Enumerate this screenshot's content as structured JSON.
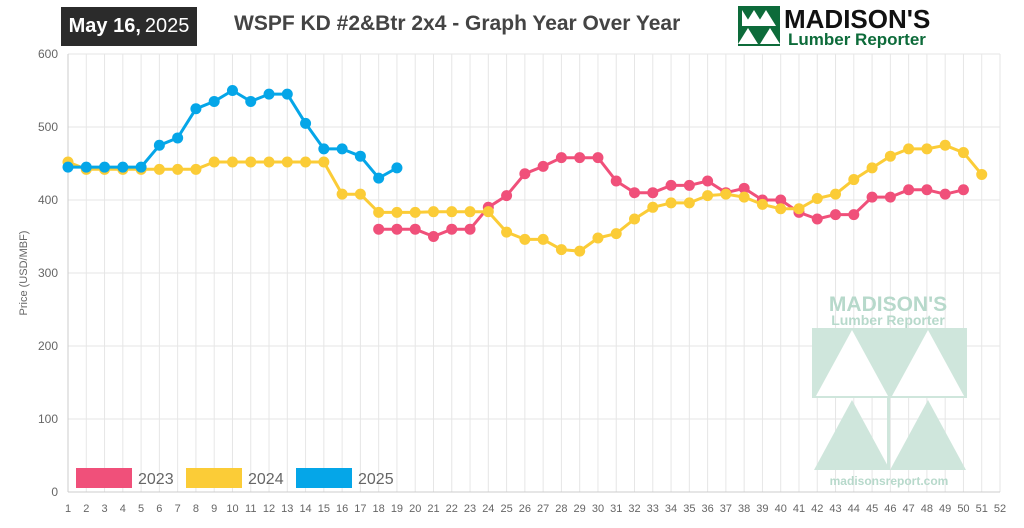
{
  "header": {
    "date_main": "May 16,",
    "date_year": "2025",
    "title": "WSPF KD #2&Btr 2x4 - Graph Year Over Year"
  },
  "logo": {
    "name": "MADISON'S",
    "subtitle": "Lumber Reporter",
    "brand_color": "#0d6b3a"
  },
  "watermark": {
    "name": "MADISON'S",
    "subtitle": "Lumber Reporter",
    "url": "madisonsreport.com",
    "color": "#b7d9cb"
  },
  "chart_data": {
    "type": "line",
    "ylabel": "Price  (USD/MBF)",
    "xlabel": "",
    "ylim": [
      0,
      600
    ],
    "yticks": [
      0,
      100,
      200,
      300,
      400,
      500,
      600
    ],
    "x": [
      1,
      2,
      3,
      4,
      5,
      6,
      7,
      8,
      9,
      10,
      11,
      12,
      13,
      14,
      15,
      16,
      17,
      18,
      19,
      20,
      21,
      22,
      23,
      24,
      25,
      26,
      27,
      28,
      29,
      30,
      31,
      32,
      33,
      34,
      35,
      36,
      37,
      38,
      39,
      40,
      41,
      42,
      43,
      44,
      45,
      46,
      47,
      48,
      49,
      50,
      51,
      52
    ],
    "grid": true,
    "legend_position": "bottom-left",
    "series": [
      {
        "name": "2023",
        "color": "#f0507a",
        "values": [
          null,
          null,
          null,
          null,
          null,
          null,
          null,
          null,
          null,
          null,
          null,
          null,
          null,
          null,
          null,
          null,
          null,
          360,
          360,
          360,
          350,
          360,
          360,
          390,
          406,
          436,
          446,
          458,
          458,
          458,
          426,
          410,
          410,
          420,
          420,
          426,
          410,
          416,
          400,
          400,
          383,
          374,
          380,
          380,
          404,
          404,
          414,
          414,
          408,
          414,
          null,
          null
        ]
      },
      {
        "name": "2024",
        "color": "#fbcc37",
        "values": [
          452,
          442,
          442,
          442,
          442,
          442,
          442,
          442,
          452,
          452,
          452,
          452,
          452,
          452,
          452,
          408,
          408,
          383,
          383,
          383,
          384,
          384,
          384,
          384,
          356,
          346,
          346,
          332,
          330,
          348,
          354,
          374,
          390,
          396,
          396,
          406,
          408,
          404,
          394,
          388,
          388,
          402,
          408,
          428,
          444,
          460,
          470,
          470,
          475,
          465,
          435,
          null
        ]
      },
      {
        "name": "2025",
        "color": "#05a6e8",
        "values": [
          445,
          445,
          445,
          445,
          445,
          475,
          485,
          525,
          535,
          550,
          535,
          545,
          545,
          505,
          470,
          470,
          460,
          430,
          444,
          null,
          null,
          null,
          null,
          null,
          null,
          null,
          null,
          null,
          null,
          null,
          null,
          null,
          null,
          null,
          null,
          null,
          null,
          null,
          null,
          null,
          null,
          null,
          null,
          null,
          null,
          null,
          null,
          null,
          null,
          null,
          null,
          null
        ]
      }
    ]
  }
}
